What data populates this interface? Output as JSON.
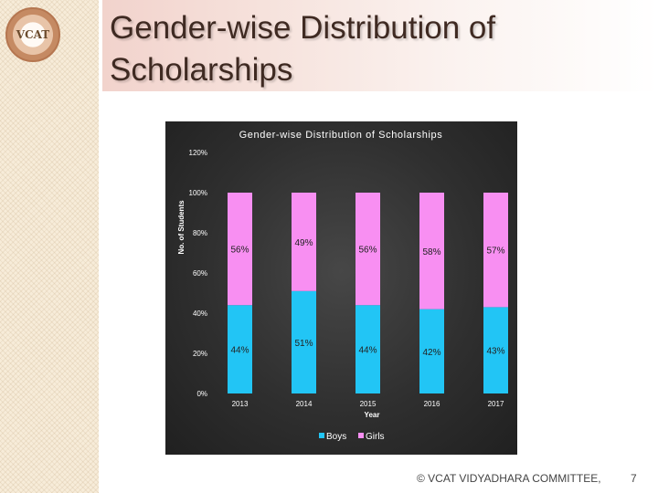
{
  "slide": {
    "title": "Gender-wise Distribution of Scholarships",
    "logo_text": "VCAT",
    "footer": "© VCAT VIDYADHARA COMMITTEE,",
    "page_number": "7"
  },
  "colors": {
    "boys": "#22c5f5",
    "girls": "#f88ff2",
    "background": "#333333",
    "text": "#ffffff"
  },
  "chart_data": {
    "type": "bar",
    "stacked": true,
    "title": "Gender-wise Distribution of Scholarships",
    "xlabel": "Year",
    "ylabel": "No. of Students",
    "categories": [
      "2013",
      "2014",
      "2015",
      "2016",
      "2017"
    ],
    "series": [
      {
        "name": "Boys",
        "values": [
          44,
          51,
          44,
          42,
          43
        ],
        "labels": [
          "44%",
          "51%",
          "44%",
          "42%",
          "43%"
        ]
      },
      {
        "name": "Girls",
        "values": [
          56,
          49,
          56,
          58,
          57
        ],
        "labels": [
          "56%",
          "49%",
          "56%",
          "58%",
          "57%"
        ]
      }
    ],
    "ylim": [
      0,
      120
    ],
    "yticks": [
      0,
      20,
      40,
      60,
      80,
      100,
      120
    ],
    "ytick_labels": [
      "0%",
      "20%",
      "40%",
      "60%",
      "80%",
      "100%",
      "120%"
    ],
    "legend": "bottom",
    "grid": false
  }
}
